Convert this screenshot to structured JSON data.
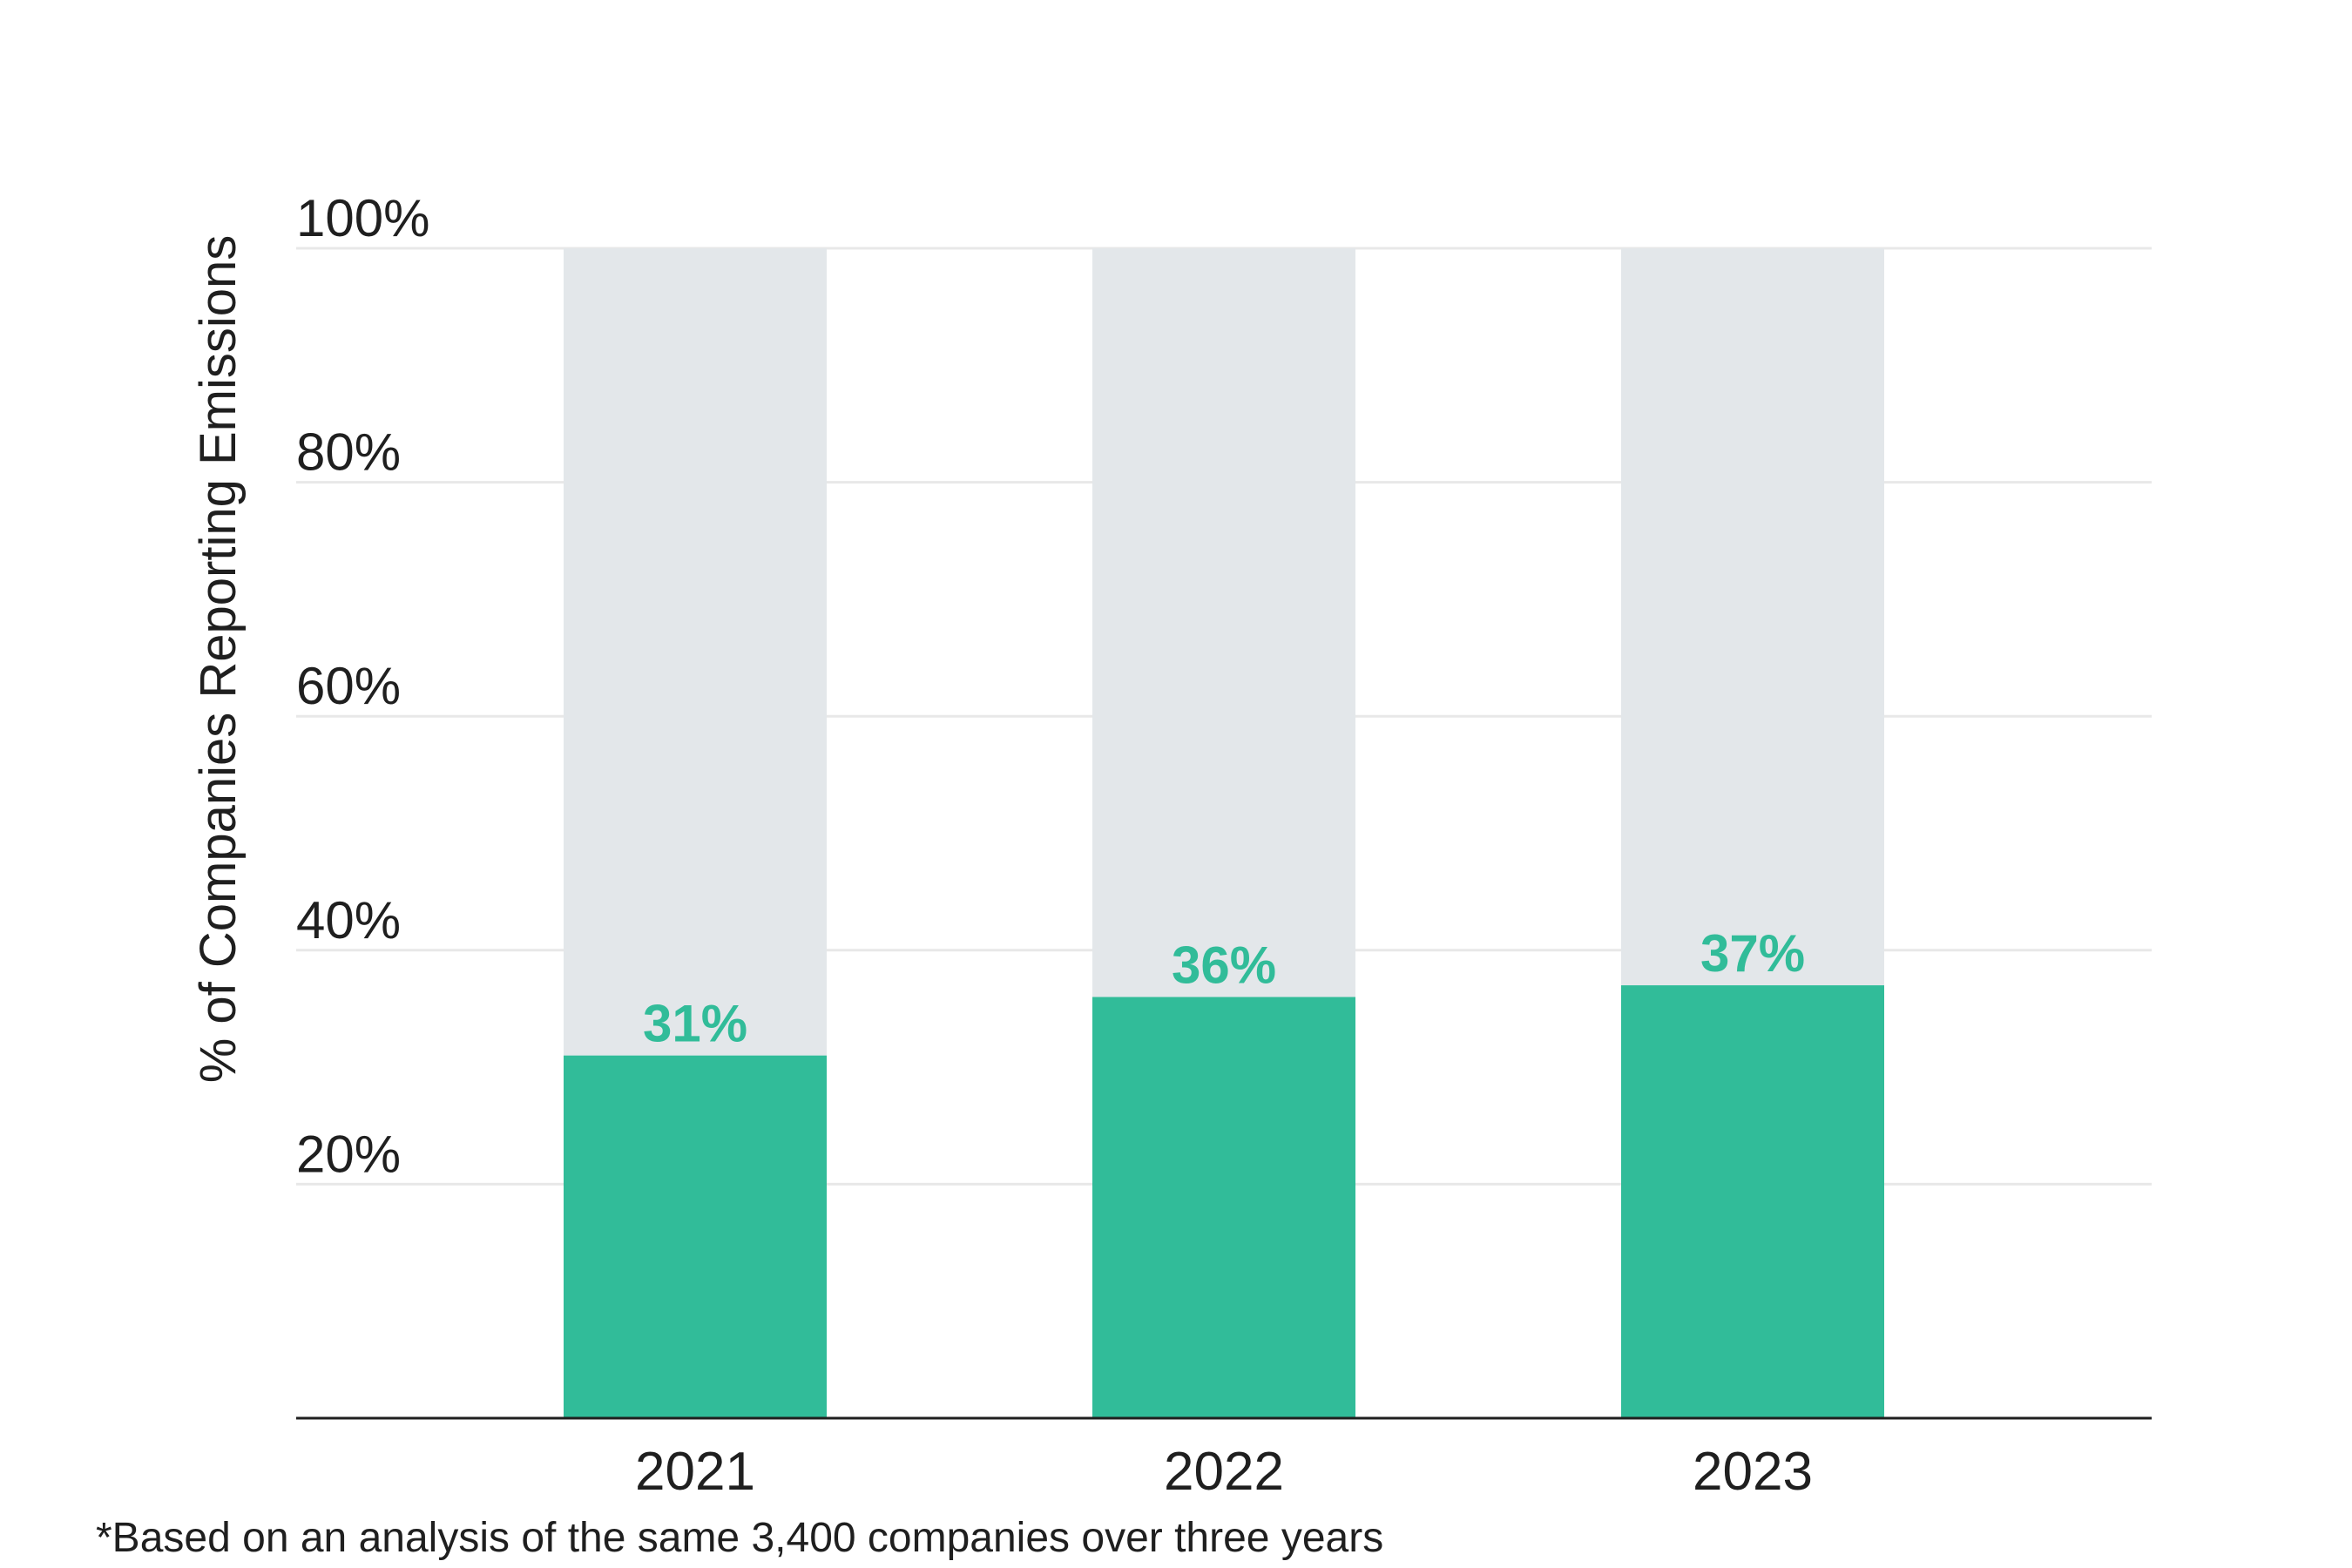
{
  "chart_data": {
    "type": "bar",
    "stacked_background": true,
    "categories": [
      "2021",
      "2022",
      "2023"
    ],
    "values": [
      31,
      36,
      37
    ],
    "value_labels": [
      "31%",
      "36%",
      "37%"
    ],
    "ylabel": "% of Companies Reporting Emissions",
    "ylim": [
      0,
      100
    ],
    "yticks": [
      20,
      40,
      60,
      80,
      100
    ],
    "ytick_labels": [
      "20%",
      "40%",
      "60%",
      "80%",
      "100%"
    ],
    "grid": true,
    "legend": "none",
    "colors": {
      "bar": "#31bc99",
      "remainder": "#e3e7ea",
      "grid": "#e8e8e8",
      "axis": "#1f1f1f",
      "value_label": "#31bc99"
    }
  },
  "footnote": "*Based on an analysis of the same 3,400 companies over three years"
}
